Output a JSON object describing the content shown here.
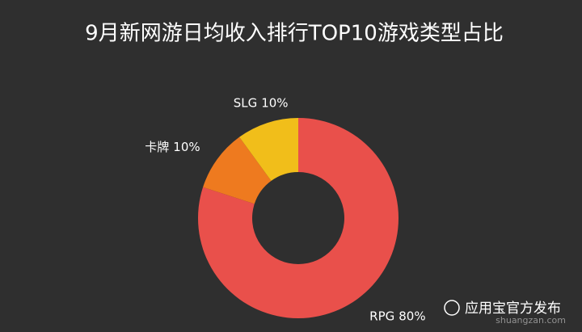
{
  "chart_data": {
    "type": "donut",
    "title": "9月新网游日均收入排行TOP10游戏类型占比",
    "categories": [
      "RPG",
      "卡牌",
      "SLG"
    ],
    "values": [
      80,
      10,
      10
    ],
    "value_labels": [
      "80%",
      "10%",
      "10%"
    ],
    "colors": [
      "#e9504b",
      "#ee7a1f",
      "#f1be1a"
    ]
  },
  "watermark": {
    "account": "应用宝官方发布",
    "site": "shuangzan.com"
  }
}
